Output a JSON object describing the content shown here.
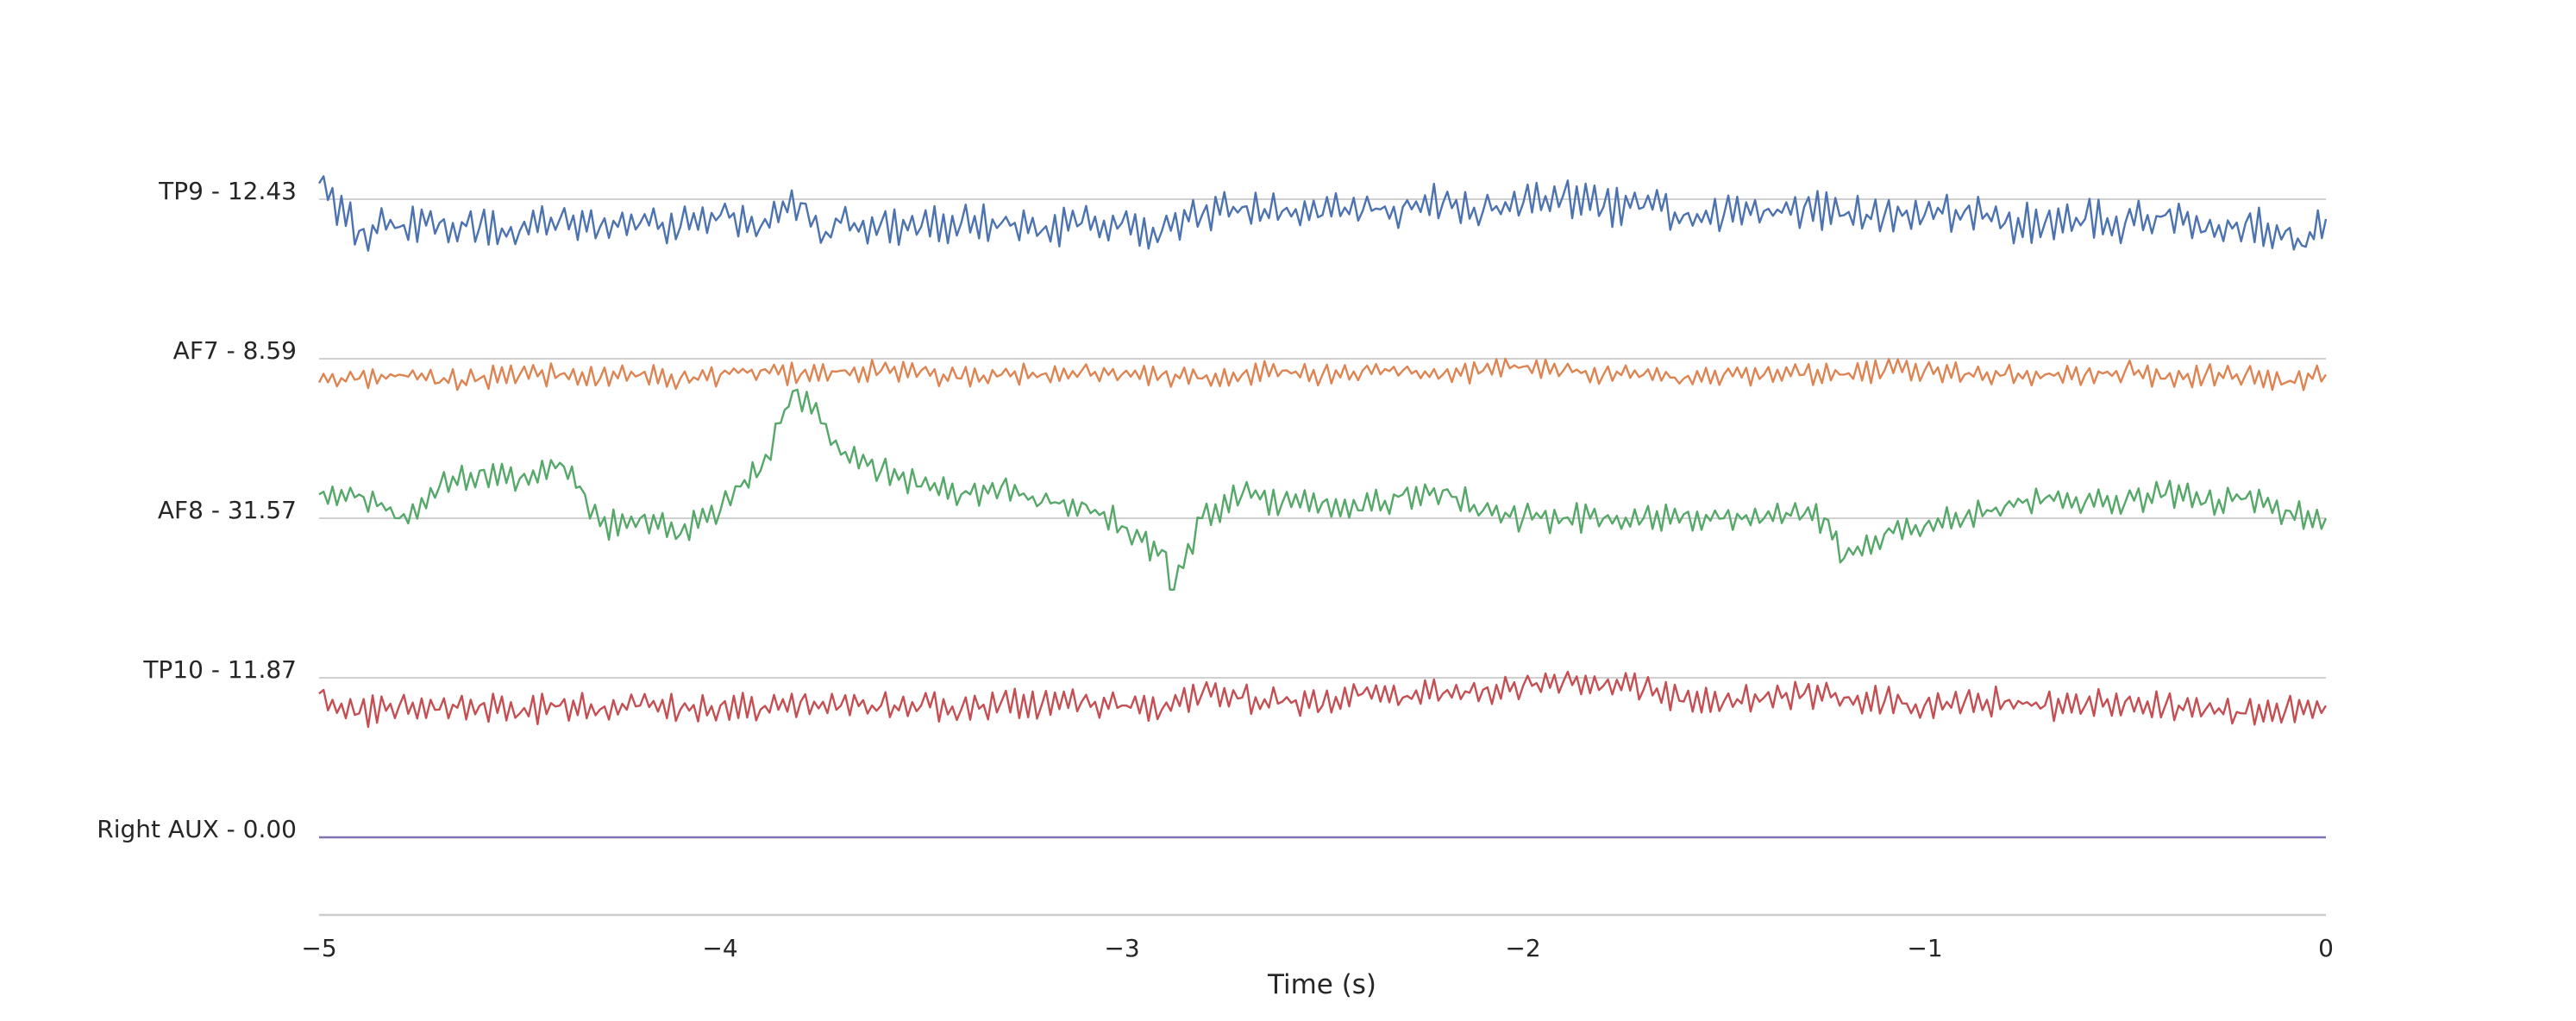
{
  "chart_data": {
    "type": "line",
    "title": "",
    "xlabel": "Time (s)",
    "ylabel": "",
    "xlim": [
      -5,
      0
    ],
    "x_ticks": [
      -5,
      -4,
      -3,
      -2,
      -1,
      0
    ],
    "x_tick_labels": [
      "−5",
      "−4",
      "−3",
      "−2",
      "−1",
      "0"
    ],
    "grid": "horizontal baselines per channel",
    "legend": "none",
    "channel_labels": [
      "TP9 - 12.43",
      "AF7 - 8.59",
      "AF8 - 31.57",
      "TP10 - 11.87",
      "Right AUX - 0.00"
    ],
    "series": [
      {
        "name": "TP9",
        "color": "#4c72b0",
        "x": [
          -5.0,
          -4.9,
          -4.8,
          -4.7,
          -4.6,
          -4.5,
          -4.4,
          -4.3,
          -4.2,
          -4.1,
          -4.0,
          -3.9,
          -3.8,
          -3.75,
          -3.7,
          -3.6,
          -3.5,
          -3.4,
          -3.3,
          -3.2,
          -3.1,
          -3.0,
          -2.9,
          -2.8,
          -2.7,
          -2.6,
          -2.5,
          -2.4,
          -2.3,
          -2.2,
          -2.1,
          -2.0,
          -1.9,
          -1.8,
          -1.7,
          -1.6,
          -1.5,
          -1.4,
          -1.3,
          -1.2,
          -1.1,
          -1.0,
          -0.9,
          -0.8,
          -0.7,
          -0.6,
          -0.5,
          -0.4,
          -0.3,
          -0.2,
          -0.1,
          -0.05,
          0.0
        ],
        "y": [
          0.2,
          -0.4,
          -0.35,
          -0.3,
          -0.35,
          -0.4,
          -0.25,
          -0.35,
          -0.3,
          -0.35,
          -0.2,
          -0.35,
          -0.05,
          -0.55,
          -0.3,
          -0.3,
          -0.35,
          -0.3,
          -0.3,
          -0.4,
          -0.3,
          -0.3,
          -0.4,
          -0.2,
          -0.1,
          -0.15,
          -0.2,
          -0.15,
          -0.1,
          -0.05,
          -0.15,
          -0.05,
          0.05,
          -0.1,
          -0.1,
          -0.2,
          -0.2,
          -0.15,
          -0.1,
          -0.2,
          -0.2,
          -0.2,
          -0.15,
          -0.3,
          -0.3,
          -0.25,
          -0.3,
          -0.2,
          -0.4,
          -0.3,
          -0.4,
          -0.6,
          -0.25
        ]
      },
      {
        "name": "AF7",
        "color": "#dd8452",
        "x": [
          -5.0,
          -4.9,
          -4.8,
          -4.7,
          -4.6,
          -4.5,
          -4.4,
          -4.3,
          -4.2,
          -4.1,
          -4.0,
          -3.9,
          -3.8,
          -3.7,
          -3.6,
          -3.5,
          -3.4,
          -3.3,
          -3.2,
          -3.1,
          -3.0,
          -2.9,
          -2.8,
          -2.7,
          -2.6,
          -2.5,
          -2.4,
          -2.3,
          -2.2,
          -2.1,
          -2.0,
          -1.9,
          -1.8,
          -1.7,
          -1.6,
          -1.5,
          -1.4,
          -1.3,
          -1.2,
          -1.1,
          -1.0,
          -0.9,
          -0.8,
          -0.7,
          -0.6,
          -0.5,
          -0.4,
          -0.3,
          -0.2,
          -0.1,
          0.0
        ],
        "y": [
          -0.3,
          -0.25,
          -0.2,
          -0.3,
          -0.25,
          -0.2,
          -0.2,
          -0.25,
          -0.2,
          -0.25,
          -0.2,
          -0.15,
          -0.2,
          -0.15,
          -0.15,
          -0.15,
          -0.25,
          -0.2,
          -0.2,
          -0.15,
          -0.2,
          -0.2,
          -0.25,
          -0.2,
          -0.15,
          -0.2,
          -0.15,
          -0.15,
          -0.2,
          -0.15,
          -0.1,
          -0.15,
          -0.2,
          -0.2,
          -0.25,
          -0.2,
          -0.2,
          -0.2,
          -0.2,
          -0.15,
          -0.15,
          -0.2,
          -0.2,
          -0.2,
          -0.2,
          -0.15,
          -0.25,
          -0.2,
          -0.2,
          -0.3,
          -0.2
        ]
      },
      {
        "name": "AF8",
        "color": "#55a868",
        "x": [
          -5.0,
          -4.9,
          -4.8,
          -4.7,
          -4.6,
          -4.5,
          -4.4,
          -4.35,
          -4.3,
          -4.2,
          -4.1,
          -4.0,
          -3.95,
          -3.9,
          -3.85,
          -3.82,
          -3.75,
          -3.7,
          -3.6,
          -3.5,
          -3.4,
          -3.3,
          -3.2,
          -3.1,
          -3.0,
          -2.95,
          -2.9,
          -2.87,
          -2.8,
          -2.7,
          -2.6,
          -2.5,
          -2.4,
          -2.3,
          -2.2,
          -2.1,
          -2.0,
          -1.9,
          -1.8,
          -1.7,
          -1.6,
          -1.5,
          -1.4,
          -1.3,
          -1.25,
          -1.2,
          -1.1,
          -1.0,
          -0.9,
          -0.8,
          -0.7,
          -0.6,
          -0.5,
          -0.4,
          -0.3,
          -0.2,
          -0.1,
          0.0
        ],
        "y": [
          0.3,
          0.3,
          0.0,
          0.4,
          0.6,
          0.5,
          0.7,
          0.4,
          -0.1,
          0.0,
          -0.2,
          0.1,
          0.4,
          0.6,
          1.2,
          1.6,
          1.2,
          0.8,
          0.6,
          0.4,
          0.3,
          0.4,
          0.2,
          0.2,
          -0.1,
          -0.3,
          -0.4,
          -0.9,
          0.0,
          0.3,
          0.2,
          0.2,
          0.1,
          0.3,
          0.35,
          0.1,
          0.0,
          0.0,
          0.0,
          0.0,
          0.05,
          0.0,
          0.0,
          0.05,
          0.0,
          -0.5,
          -0.2,
          -0.1,
          0.0,
          0.15,
          0.25,
          0.2,
          0.2,
          0.3,
          0.2,
          0.25,
          0.1,
          0.0
        ]
      },
      {
        "name": "TP10",
        "color": "#c44e52",
        "x": [
          -5.0,
          -4.9,
          -4.8,
          -4.7,
          -4.6,
          -4.5,
          -4.4,
          -4.3,
          -4.2,
          -4.1,
          -4.0,
          -3.9,
          -3.8,
          -3.7,
          -3.6,
          -3.5,
          -3.4,
          -3.3,
          -3.2,
          -3.1,
          -3.0,
          -2.9,
          -2.8,
          -2.7,
          -2.6,
          -2.5,
          -2.4,
          -2.3,
          -2.2,
          -2.1,
          -2.0,
          -1.9,
          -1.8,
          -1.7,
          -1.6,
          -1.5,
          -1.4,
          -1.3,
          -1.2,
          -1.1,
          -1.0,
          -0.9,
          -0.8,
          -0.7,
          -0.6,
          -0.5,
          -0.4,
          -0.3,
          -0.2,
          -0.1,
          0.0
        ],
        "y": [
          -0.2,
          -0.45,
          -0.35,
          -0.4,
          -0.35,
          -0.45,
          -0.35,
          -0.4,
          -0.35,
          -0.4,
          -0.35,
          -0.4,
          -0.3,
          -0.35,
          -0.35,
          -0.35,
          -0.4,
          -0.3,
          -0.35,
          -0.3,
          -0.35,
          -0.4,
          -0.2,
          -0.25,
          -0.3,
          -0.35,
          -0.2,
          -0.25,
          -0.2,
          -0.15,
          -0.1,
          -0.05,
          -0.1,
          -0.15,
          -0.3,
          -0.3,
          -0.25,
          -0.2,
          -0.25,
          -0.3,
          -0.35,
          -0.3,
          -0.3,
          -0.35,
          -0.35,
          -0.3,
          -0.35,
          -0.4,
          -0.45,
          -0.4,
          -0.35
        ]
      },
      {
        "name": "Right AUX",
        "color": "#8172b3",
        "x": [
          -5.0,
          0.0
        ],
        "y": [
          0.0,
          0.0
        ]
      }
    ]
  }
}
